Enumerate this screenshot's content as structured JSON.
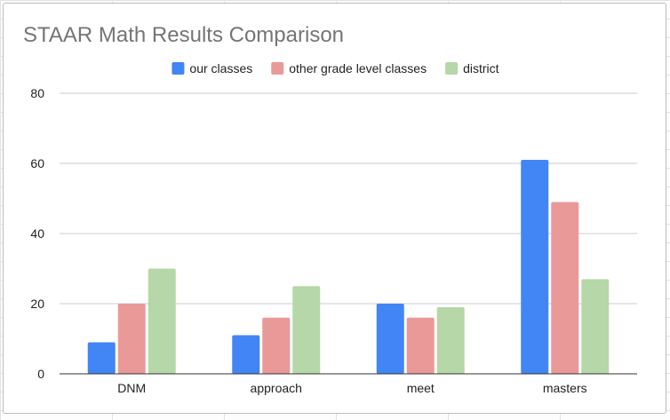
{
  "chart_data": {
    "type": "bar",
    "title": "STAAR Math Results Comparison",
    "categories": [
      "DNM",
      "approach",
      "meet",
      "masters"
    ],
    "series": [
      {
        "name": "our classes",
        "values": [
          9,
          11,
          20,
          61
        ],
        "color": "#4285f4"
      },
      {
        "name": "other grade level classes",
        "values": [
          20,
          16,
          16,
          49
        ],
        "color": "#ea9999"
      },
      {
        "name": "district",
        "values": [
          30,
          25,
          19,
          27
        ],
        "color": "#b6d7a8"
      }
    ],
    "xlabel": "",
    "ylabel": "",
    "ylim": [
      0,
      80
    ],
    "yticks": [
      0,
      20,
      40,
      60,
      80
    ],
    "grid": true,
    "legend_position": "top"
  }
}
